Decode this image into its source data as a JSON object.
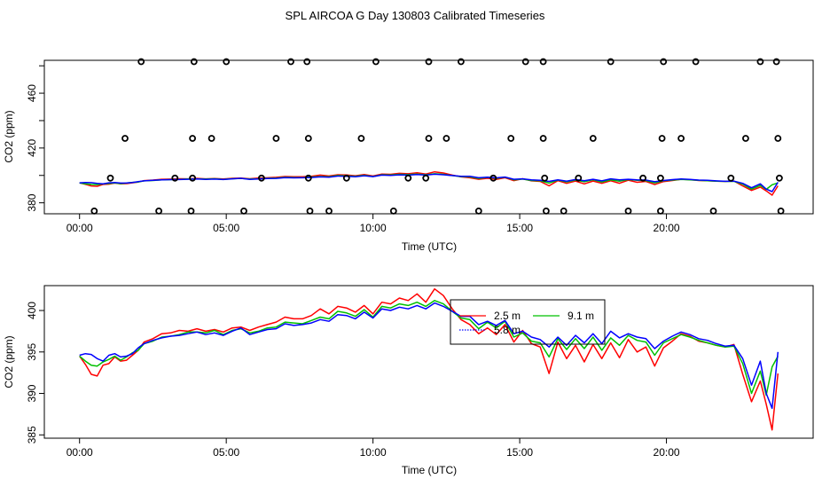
{
  "title": "SPL AIRCOA G  Day 130803  Calibrated Timeseries",
  "colors": {
    "series_1": "#ff0000",
    "series_2": "#00c000",
    "series_3": "#0000ff",
    "markers": "#000000"
  },
  "chart_data": [
    {
      "type": "scatter",
      "xlabel": "Time (UTC)",
      "ylabel": "CO2 (ppm)",
      "xlim": [
        -1.2,
        25.0
      ],
      "ylim": [
        372,
        484
      ],
      "x_ticks": [
        0,
        5,
        10,
        15,
        20
      ],
      "x_tick_labels": [
        "00:00",
        "05:00",
        "10:00",
        "15:00",
        "20:00"
      ],
      "y_ticks": [
        380,
        420,
        460
      ],
      "y_tick_labels": [
        "380",
        "420",
        "460"
      ],
      "extra_y_ticks": [
        400,
        440,
        480
      ],
      "calibration_points": {
        "x": [
          0.5,
          1.05,
          1.55,
          2.1,
          2.7,
          3.25,
          3.8,
          3.85,
          3.85,
          3.9,
          4.5,
          5.0,
          5.6,
          6.2,
          6.7,
          7.2,
          7.75,
          7.8,
          7.85,
          7.8,
          8.5,
          9.1,
          9.6,
          10.1,
          10.7,
          11.2,
          11.8,
          11.9,
          11.9,
          12.5,
          13.0,
          13.6,
          14.1,
          14.7,
          15.2,
          15.8,
          15.8,
          15.85,
          15.9,
          16.5,
          17.0,
          17.5,
          18.1,
          18.7,
          19.2,
          19.8,
          19.8,
          19.85,
          19.9,
          20.5,
          21.0,
          21.6,
          22.2,
          22.7,
          23.2,
          23.75,
          23.8,
          23.85,
          23.9
        ],
        "y": [
          374,
          398,
          427,
          483,
          374,
          398,
          374,
          398,
          427,
          483,
          427,
          483,
          374,
          398,
          427,
          483,
          483,
          427,
          374,
          398,
          374,
          398,
          427,
          483,
          374,
          398,
          398,
          427,
          483,
          427,
          483,
          374,
          398,
          427,
          483,
          483,
          427,
          398,
          374,
          374,
          398,
          427,
          483,
          374,
          398,
          398,
          374,
          427,
          483,
          427,
          483,
          374,
          398,
          427,
          483,
          483,
          427,
          398,
          374
        ]
      },
      "series": [
        {
          "key": "s1",
          "color": "#ff0000"
        },
        {
          "key": "s2",
          "color": "#00c000"
        },
        {
          "key": "s3",
          "color": "#0000ff"
        }
      ]
    },
    {
      "type": "line",
      "xlabel": "Time (UTC)",
      "ylabel": "CO2 (ppm)",
      "xlim": [
        -1.2,
        25.0
      ],
      "ylim": [
        384.6,
        403.0
      ],
      "x_ticks": [
        0,
        5,
        10,
        15,
        20
      ],
      "x_tick_labels": [
        "00:00",
        "05:00",
        "10:00",
        "15:00",
        "20:00"
      ],
      "y_ticks": [
        385,
        390,
        395,
        400
      ],
      "y_tick_labels": [
        "385",
        "390",
        "395",
        "400"
      ],
      "legend_position": "center-right",
      "legend_labels": [
        "2.5 m",
        "9.1 m",
        "5.8 m"
      ],
      "series": [
        {
          "key": "s1",
          "color": "#ff0000",
          "x": [
            0,
            0.2,
            0.4,
            0.6,
            0.8,
            1.0,
            1.2,
            1.4,
            1.6,
            1.8,
            2.0,
            2.2,
            2.5,
            2.8,
            3.1,
            3.4,
            3.7,
            4.0,
            4.3,
            4.6,
            4.9,
            5.2,
            5.5,
            5.8,
            6.1,
            6.4,
            6.7,
            7.0,
            7.3,
            7.6,
            7.9,
            8.2,
            8.5,
            8.8,
            9.1,
            9.4,
            9.7,
            10.0,
            10.3,
            10.6,
            10.9,
            11.2,
            11.5,
            11.8,
            12.1,
            12.4,
            12.7,
            13.0,
            13.3,
            13.6,
            13.9,
            14.2,
            14.5,
            14.8,
            15.1,
            15.4,
            15.7,
            16.0,
            16.3,
            16.6,
            16.9,
            17.2,
            17.5,
            17.8,
            18.1,
            18.4,
            18.7,
            19.0,
            19.3,
            19.6,
            19.9,
            20.2,
            20.5,
            20.8,
            21.1,
            21.4,
            21.7,
            22.0,
            22.3,
            22.6,
            22.9,
            23.2,
            23.4,
            23.6,
            23.8
          ],
          "y": [
            394.5,
            393.5,
            392.3,
            392.1,
            393.4,
            393.6,
            394.4,
            393.9,
            394.0,
            394.6,
            395.2,
            396.2,
            396.6,
            397.2,
            397.3,
            397.6,
            397.5,
            397.8,
            397.5,
            397.7,
            397.4,
            397.9,
            398.0,
            397.6,
            398.0,
            398.3,
            398.6,
            399.2,
            399.0,
            399.0,
            399.4,
            400.2,
            399.6,
            400.5,
            400.3,
            399.8,
            400.6,
            399.6,
            401.0,
            400.8,
            401.5,
            401.2,
            402.0,
            401.0,
            402.6,
            401.8,
            400.2,
            398.9,
            398.3,
            397.2,
            397.9,
            397.1,
            398.3,
            396.2,
            397.6,
            396.0,
            395.6,
            392.4,
            396.2,
            394.2,
            395.8,
            393.8,
            395.9,
            394.2,
            396.1,
            394.3,
            396.5,
            395.0,
            395.6,
            393.3,
            395.5,
            396.3,
            397.2,
            396.9,
            396.3,
            396.1,
            395.8,
            395.6,
            395.9,
            392.3,
            389.0,
            391.5,
            388.7,
            385.6,
            392.4
          ]
        },
        {
          "key": "s2",
          "color": "#00c000",
          "x": [
            0,
            0.2,
            0.4,
            0.6,
            0.8,
            1.0,
            1.2,
            1.4,
            1.6,
            1.8,
            2.0,
            2.2,
            2.5,
            2.8,
            3.1,
            3.4,
            3.7,
            4.0,
            4.3,
            4.6,
            4.9,
            5.2,
            5.5,
            5.8,
            6.1,
            6.4,
            6.7,
            7.0,
            7.3,
            7.6,
            7.9,
            8.2,
            8.5,
            8.8,
            9.1,
            9.4,
            9.7,
            10.0,
            10.3,
            10.6,
            10.9,
            11.2,
            11.5,
            11.8,
            12.1,
            12.4,
            12.7,
            13.0,
            13.3,
            13.6,
            13.9,
            14.2,
            14.5,
            14.8,
            15.1,
            15.4,
            15.7,
            16.0,
            16.3,
            16.6,
            16.9,
            17.2,
            17.5,
            17.8,
            18.1,
            18.4,
            18.7,
            19.0,
            19.3,
            19.6,
            19.9,
            20.2,
            20.5,
            20.8,
            21.1,
            21.4,
            21.7,
            22.0,
            22.3,
            22.6,
            22.9,
            23.2,
            23.4,
            23.6,
            23.8
          ],
          "y": [
            394.5,
            393.9,
            393.4,
            393.3,
            393.8,
            394.1,
            394.5,
            394.0,
            394.4,
            394.9,
            395.2,
            396.0,
            396.3,
            396.8,
            396.9,
            397.1,
            397.4,
            397.4,
            397.3,
            397.6,
            397.1,
            397.6,
            397.8,
            397.3,
            397.5,
            397.9,
            398.0,
            398.6,
            398.5,
            398.4,
            398.8,
            399.2,
            399.0,
            399.9,
            399.7,
            399.3,
            400.1,
            399.2,
            400.5,
            400.3,
            400.8,
            400.6,
            401.0,
            400.5,
            401.2,
            400.8,
            399.9,
            399.1,
            398.9,
            397.8,
            398.6,
            397.9,
            398.7,
            396.8,
            397.3,
            396.3,
            396.1,
            394.4,
            396.6,
            395.3,
            396.6,
            395.4,
            396.8,
            395.2,
            396.7,
            395.8,
            397.0,
            396.4,
            396.2,
            394.6,
            396.1,
            396.6,
            397.1,
            396.8,
            396.4,
            396.1,
            395.8,
            395.6,
            395.7,
            393.6,
            390.0,
            392.7,
            389.8,
            393.2,
            394.5
          ]
        },
        {
          "key": "s3",
          "color": "#0000ff",
          "x": [
            0,
            0.2,
            0.4,
            0.6,
            0.8,
            1.0,
            1.2,
            1.4,
            1.6,
            1.8,
            2.0,
            2.2,
            2.5,
            2.8,
            3.1,
            3.4,
            3.7,
            4.0,
            4.3,
            4.6,
            4.9,
            5.2,
            5.5,
            5.8,
            6.1,
            6.4,
            6.7,
            7.0,
            7.3,
            7.6,
            7.9,
            8.2,
            8.5,
            8.8,
            9.1,
            9.4,
            9.7,
            10.0,
            10.3,
            10.6,
            10.9,
            11.2,
            11.5,
            11.8,
            12.1,
            12.4,
            12.7,
            13.0,
            13.3,
            13.6,
            13.9,
            14.2,
            14.5,
            14.8,
            15.1,
            15.4,
            15.7,
            16.0,
            16.3,
            16.6,
            16.9,
            17.2,
            17.5,
            17.8,
            18.1,
            18.4,
            18.7,
            19.0,
            19.3,
            19.6,
            19.9,
            20.2,
            20.5,
            20.8,
            21.1,
            21.4,
            21.7,
            22.0,
            22.3,
            22.6,
            22.9,
            23.2,
            23.4,
            23.6,
            23.8
          ],
          "y": [
            394.6,
            394.8,
            394.7,
            394.2,
            393.9,
            394.6,
            394.8,
            394.4,
            394.5,
            394.8,
            395.5,
            396.0,
            396.4,
            396.7,
            396.9,
            397.0,
            397.2,
            397.4,
            397.1,
            397.3,
            397.0,
            397.5,
            397.9,
            397.1,
            397.4,
            397.7,
            397.8,
            398.4,
            398.2,
            398.3,
            398.5,
            398.9,
            398.7,
            399.5,
            399.4,
            399.0,
            399.8,
            399.1,
            400.2,
            400.0,
            400.4,
            400.2,
            400.6,
            400.2,
            400.9,
            400.5,
            399.9,
            399.3,
            399.3,
            398.3,
            398.7,
            398.2,
            398.8,
            397.2,
            397.5,
            396.8,
            396.5,
            395.6,
            396.8,
            395.8,
            397.0,
            396.1,
            397.2,
            396.0,
            397.5,
            396.7,
            397.2,
            396.8,
            396.6,
            395.4,
            396.3,
            396.9,
            397.4,
            397.1,
            396.6,
            396.4,
            396.0,
            395.7,
            395.8,
            394.2,
            391.0,
            393.9,
            390.0,
            388.2,
            395.0
          ]
        }
      ]
    }
  ]
}
